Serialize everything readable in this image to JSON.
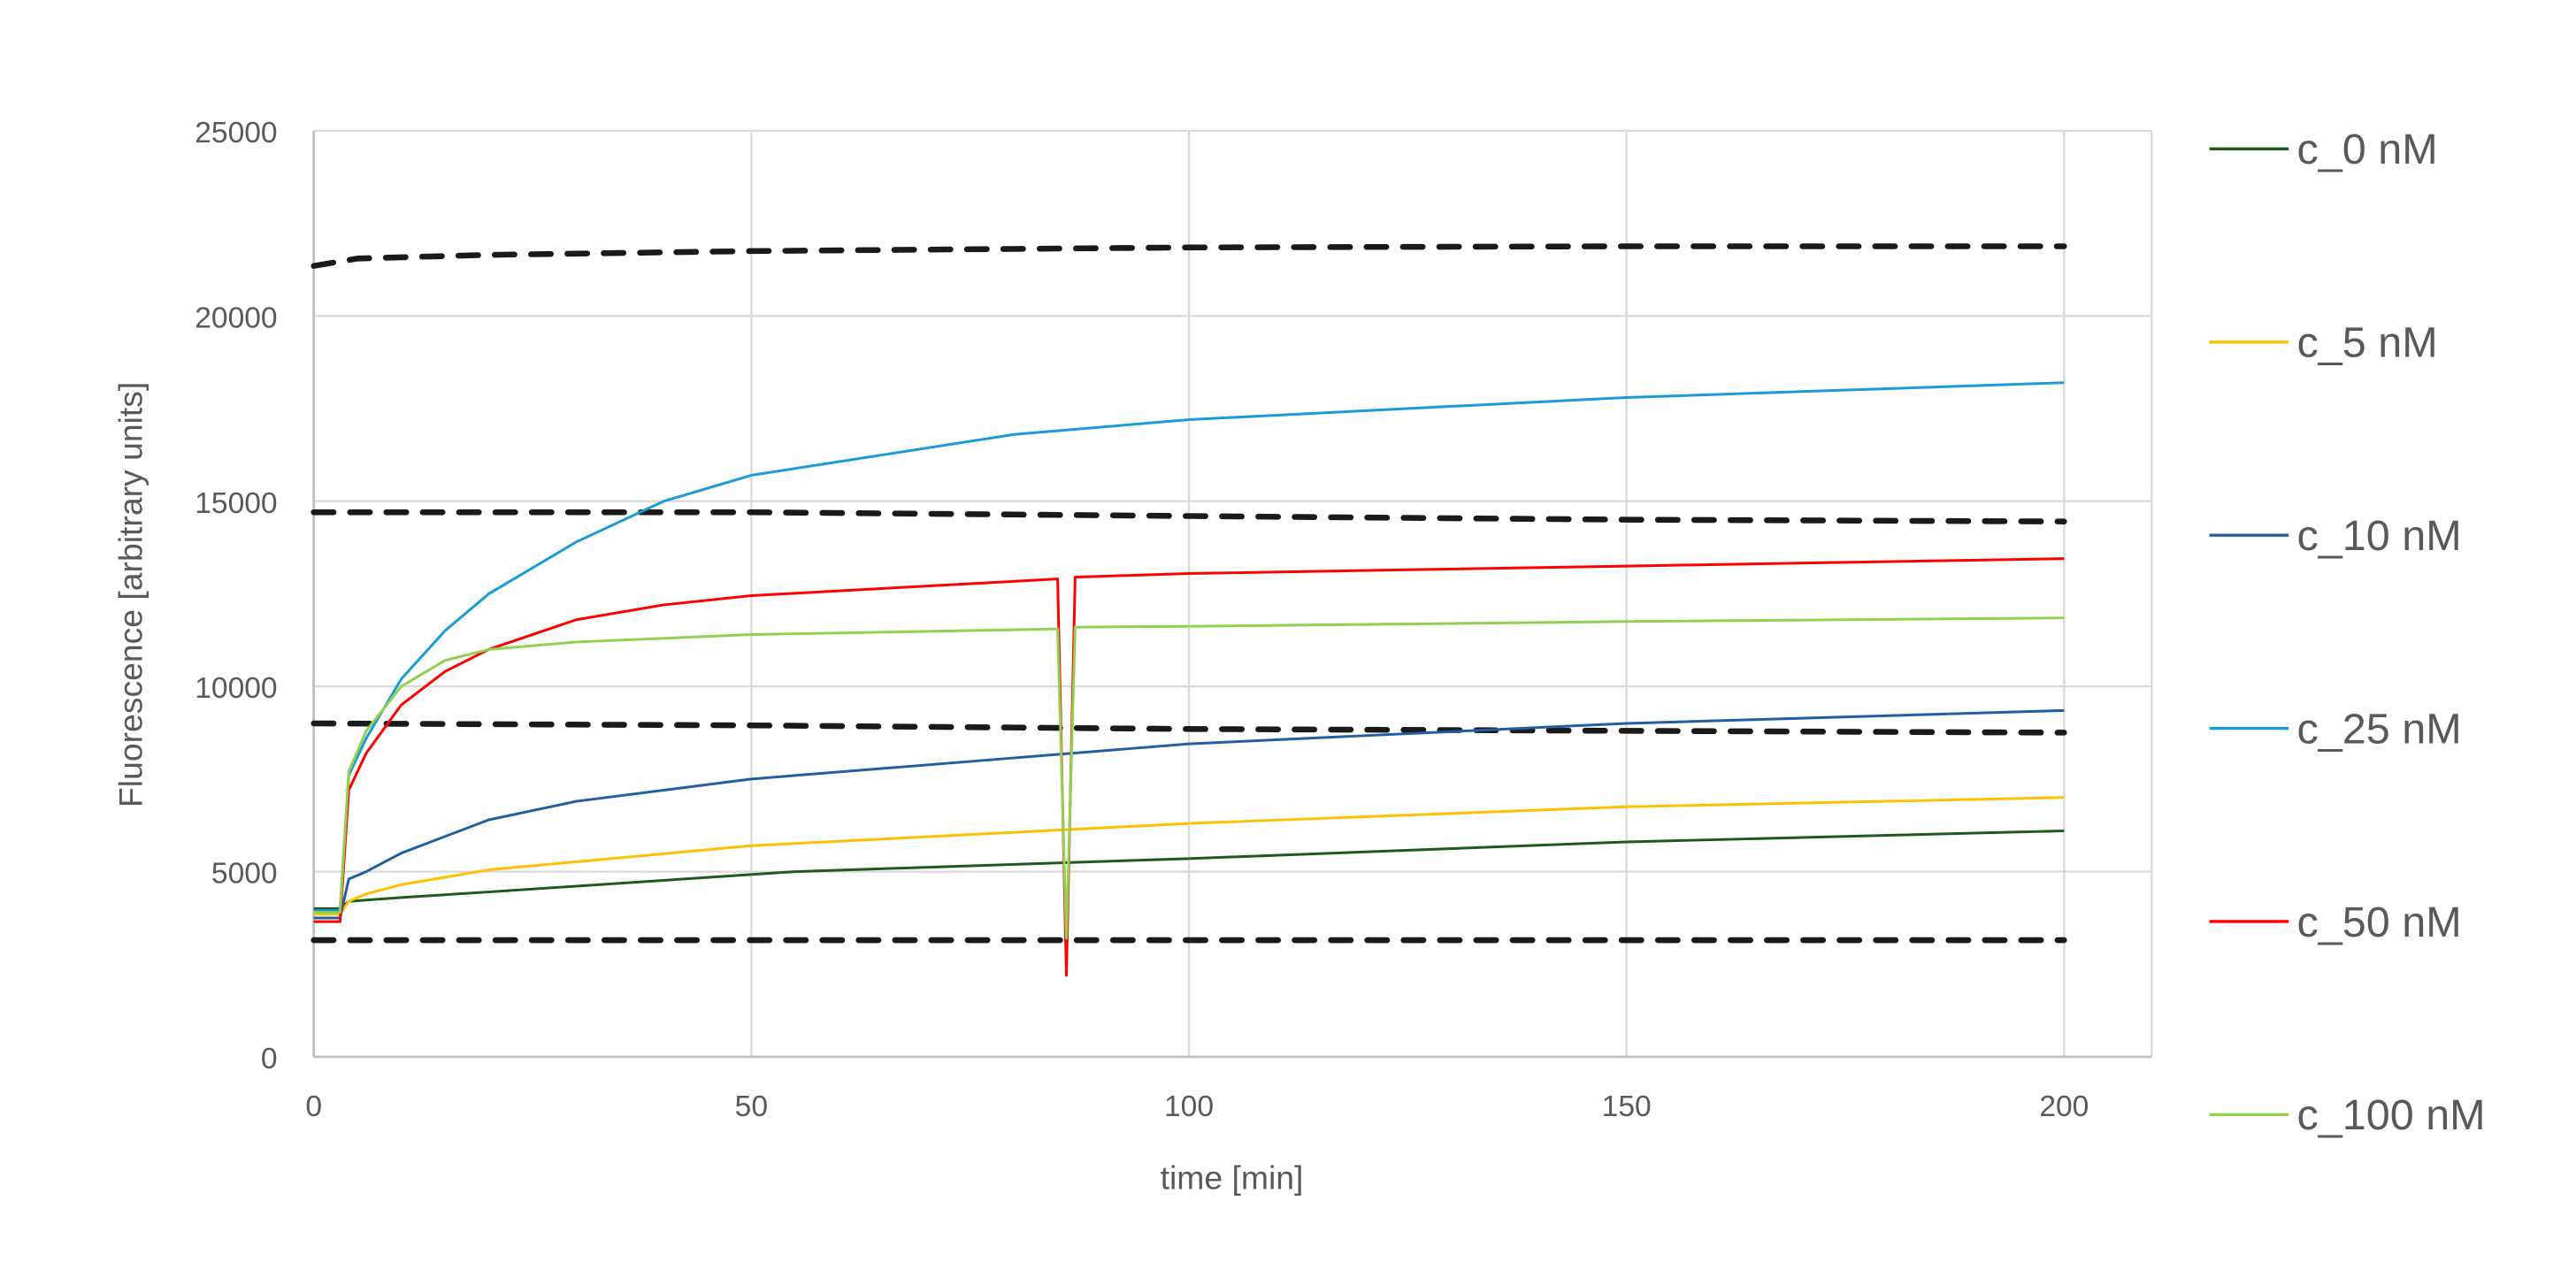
{
  "chart_data": {
    "type": "line",
    "title": "",
    "xlabel": "time [min]",
    "ylabel": "Fluorescence [arbitrary units]",
    "xlim": [
      0,
      210
    ],
    "ylim": [
      0,
      25000
    ],
    "xticks": [
      0,
      50,
      100,
      150,
      200
    ],
    "yticks": [
      0,
      5000,
      10000,
      15000,
      20000,
      25000
    ],
    "grid": true,
    "legend_position": "right",
    "series": [
      {
        "name": "c_0 nM",
        "color": "#1E5A1E",
        "style": "solid",
        "x": [
          0,
          3,
          4,
          10,
          20,
          55,
          100,
          150,
          200
        ],
        "y": [
          4000,
          4000,
          4200,
          4300,
          4450,
          5000,
          5350,
          5800,
          6100
        ]
      },
      {
        "name": "c_5 nM",
        "color": "#FFC000",
        "style": "solid",
        "x": [
          0,
          3,
          4,
          6,
          10,
          20,
          50,
          100,
          150,
          200
        ],
        "y": [
          3850,
          3850,
          4200,
          4400,
          4650,
          5050,
          5700,
          6300,
          6750,
          7000
        ]
      },
      {
        "name": "c_10 nM",
        "color": "#2060A0",
        "style": "solid",
        "x": [
          0,
          3,
          4,
          6,
          10,
          20,
          30,
          50,
          100,
          150,
          200
        ],
        "y": [
          3750,
          3750,
          4800,
          5000,
          5500,
          6400,
          6900,
          7500,
          8450,
          9000,
          9350
        ]
      },
      {
        "name": "c_25 nM",
        "color": "#1A9BD7",
        "style": "solid",
        "x": [
          0,
          3,
          4,
          6,
          10,
          15,
          20,
          30,
          40,
          50,
          80,
          100,
          150,
          200
        ],
        "y": [
          3950,
          3950,
          7600,
          8600,
          10200,
          11500,
          12500,
          13900,
          15000,
          15700,
          16800,
          17200,
          17800,
          18200
        ]
      },
      {
        "name": "c_50 nM",
        "color": "#FF0000",
        "style": "solid",
        "x": [
          0,
          3,
          4,
          6,
          10,
          15,
          20,
          30,
          40,
          50,
          85,
          86,
          87,
          100,
          150,
          200
        ],
        "y": [
          3650,
          3650,
          7200,
          8200,
          9500,
          10400,
          11000,
          11800,
          12200,
          12450,
          12900,
          2200,
          12950,
          13050,
          13250,
          13450
        ]
      },
      {
        "name": "c_100 nM",
        "color": "#92D050",
        "style": "solid",
        "x": [
          0,
          3,
          4,
          6,
          10,
          15,
          20,
          30,
          50,
          85,
          86,
          87,
          100,
          150,
          200
        ],
        "y": [
          3900,
          3900,
          7700,
          8800,
          10000,
          10700,
          11000,
          11200,
          11400,
          11550,
          3200,
          11600,
          11620,
          11750,
          11850
        ]
      },
      {
        "color": "#1A1A1A",
        "style": "dashed",
        "x": [
          0,
          5,
          20,
          50,
          100,
          150,
          200
        ],
        "y": [
          21350,
          21550,
          21650,
          21750,
          21850,
          21880,
          21880
        ]
      },
      {
        "color": "#1A1A1A",
        "style": "dashed",
        "x": [
          0,
          50,
          100,
          150,
          200
        ],
        "y": [
          14700,
          14700,
          14600,
          14500,
          14450
        ]
      },
      {
        "color": "#1A1A1A",
        "style": "dashed",
        "x": [
          0,
          50,
          100,
          150,
          200
        ],
        "y": [
          9000,
          8950,
          8850,
          8800,
          8750
        ]
      },
      {
        "color": "#1A1A1A",
        "style": "dashed",
        "x": [
          0,
          100,
          200
        ],
        "y": [
          3150,
          3150,
          3150
        ]
      }
    ]
  }
}
